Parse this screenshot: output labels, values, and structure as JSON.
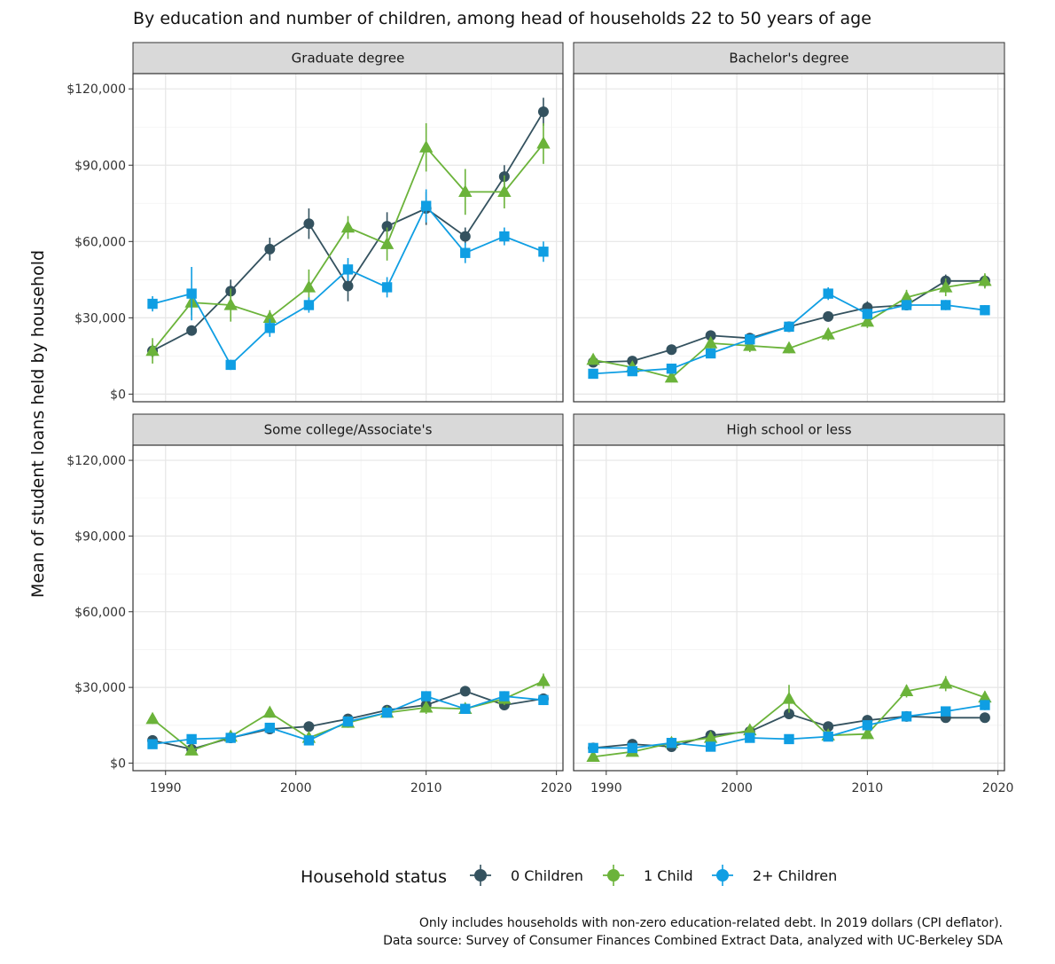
{
  "chart_data": {
    "type": "line",
    "title": "By education and number of children, among head of households 22 to 50 years of age",
    "ylabel": "Mean of student loans held by household",
    "xlabel": "",
    "x_ticks": [
      1990,
      2000,
      2010,
      2020
    ],
    "y_ticks": [
      0,
      30000,
      60000,
      90000,
      120000
    ],
    "y_tick_labels": [
      "$0",
      "$30,000",
      "$60,000",
      "$90,000",
      "$120,000"
    ],
    "xlim": [
      1987.5,
      2020.5
    ],
    "ylim": [
      -3000,
      126000
    ],
    "x": [
      1989,
      1992,
      1995,
      1998,
      2001,
      2004,
      2007,
      2010,
      2013,
      2016,
      2019
    ],
    "legend": {
      "title": "Household status",
      "position": "bottom"
    },
    "series_styles": [
      {
        "name": "0 Children",
        "color": "#34525f",
        "shape": "circle"
      },
      {
        "name": "1 Child",
        "color": "#6bb33a",
        "shape": "triangle"
      },
      {
        "name": "2+ Children",
        "color": "#0f9ee3",
        "shape": "square"
      }
    ],
    "panels": [
      {
        "label": "Graduate degree",
        "series": [
          {
            "name": "0 Children",
            "values": [
              17000,
              25000,
              40500,
              57000,
              67000,
              42500,
              66000,
              73000,
              62000,
              85500,
              111000
            ],
            "errors": [
              2500,
              2000,
              4500,
              4500,
              6000,
              6000,
              5500,
              6500,
              3500,
              4500,
              5500
            ]
          },
          {
            "name": "1 Child",
            "values": [
              17000,
              36000,
              35000,
              30000,
              42000,
              65500,
              59000,
              97000,
              79500,
              79500,
              98500
            ],
            "errors": [
              5000,
              5000,
              6500,
              3000,
              7000,
              4500,
              6500,
              9500,
              9000,
              6500,
              8000
            ]
          },
          {
            "name": "2+ Children",
            "values": [
              35500,
              39500,
              11500,
              26000,
              35000,
              49000,
              42000,
              74000,
              55500,
              62000,
              56000
            ],
            "errors": [
              3000,
              10500,
              2000,
              3500,
              3000,
              4500,
              4000,
              6500,
              4000,
              3500,
              4000
            ]
          }
        ]
      },
      {
        "label": "Bachelor's degree",
        "series": [
          {
            "name": "0 Children",
            "values": [
              12500,
              13000,
              17500,
              23000,
              22000,
              26500,
              30500,
              34000,
              35000,
              44500,
              44500
            ],
            "errors": [
              1500,
              1500,
              1500,
              2000,
              2000,
              2000,
              2000,
              2500,
              2000,
              2500,
              2500
            ]
          },
          {
            "name": "1 Child",
            "values": [
              13500,
              10500,
              6500,
              20000,
              19000,
              18000,
              23500,
              28500,
              38000,
              42000,
              44500
            ],
            "errors": [
              2000,
              2000,
              1500,
              2500,
              2500,
              2000,
              2500,
              2500,
              3000,
              3500,
              3000
            ]
          },
          {
            "name": "2+ Children",
            "values": [
              8000,
              9000,
              10000,
              16000,
              21500,
              26500,
              39500,
              31500,
              35000,
              35000,
              33000
            ],
            "errors": [
              1000,
              1000,
              1000,
              1500,
              1500,
              2000,
              2500,
              2000,
              2000,
              2000,
              2000
            ]
          }
        ]
      },
      {
        "label": "Some college/Associate's",
        "series": [
          {
            "name": "0 Children",
            "values": [
              9000,
              5500,
              10000,
              13500,
              14500,
              17500,
              21000,
              23000,
              28500,
              23000,
              25500
            ],
            "errors": [
              1000,
              1000,
              1000,
              1500,
              1500,
              1500,
              1500,
              2000,
              2000,
              2000,
              2000
            ]
          },
          {
            "name": "1 Child",
            "values": [
              17500,
              5000,
              10500,
              20000,
              10000,
              16000,
              20000,
              22000,
              21500,
              25500,
              32500
            ],
            "errors": [
              2000,
              1000,
              1500,
              2000,
              1500,
              2000,
              2000,
              2500,
              2000,
              2500,
              3000
            ]
          },
          {
            "name": "2+ Children",
            "values": [
              7500,
              9500,
              10000,
              14000,
              9000,
              16500,
              20000,
              26500,
              21500,
              26500,
              25000
            ],
            "errors": [
              1000,
              1000,
              1000,
              1500,
              1000,
              1500,
              1500,
              2000,
              1500,
              2000,
              2000
            ]
          }
        ]
      },
      {
        "label": "High school or less",
        "series": [
          {
            "name": "0 Children",
            "values": [
              6000,
              7500,
              6500,
              11000,
              12500,
              19500,
              14500,
              17000,
              18500,
              18000,
              18000
            ],
            "errors": [
              800,
              1000,
              1000,
              1500,
              1500,
              2000,
              1500,
              1500,
              1500,
              1500,
              1500
            ]
          },
          {
            "name": "1 Child",
            "values": [
              2500,
              4500,
              8000,
              10000,
              13000,
              25500,
              11000,
              11500,
              28500,
              31500,
              26000
            ],
            "errors": [
              800,
              1000,
              1500,
              1500,
              2000,
              5500,
              1500,
              1500,
              2500,
              3000,
              2500
            ]
          },
          {
            "name": "2+ Children",
            "values": [
              6000,
              6000,
              8000,
              6500,
              10000,
              9500,
              10500,
              15000,
              18500,
              20500,
              23000
            ],
            "errors": [
              800,
              800,
              1000,
              1000,
              1000,
              1000,
              1000,
              1500,
              1500,
              1500,
              2000
            ]
          }
        ]
      }
    ],
    "caption": [
      "Only includes households with non-zero education-related debt. In 2019 dollars (CPI deflator).",
      "Data source: Survey of Consumer Finances Combined Extract Data, analyzed with UC-Berkeley SDA"
    ]
  }
}
